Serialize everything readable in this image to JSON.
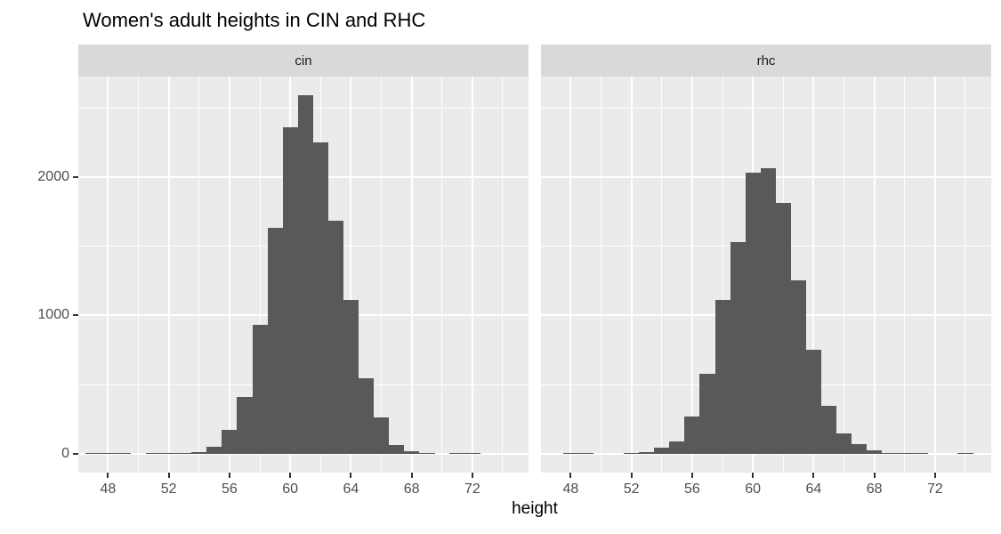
{
  "chart_data": {
    "type": "bar",
    "subtype": "faceted-histogram",
    "title": "Women's adult heights in CIN and RHC",
    "xlabel": "height",
    "ylabel": "",
    "binwidth": 1,
    "x_ticks": [
      48,
      52,
      56,
      60,
      64,
      68,
      72
    ],
    "x_minor_ticks": [
      50,
      54,
      58,
      62,
      66,
      70,
      74
    ],
    "y_ticks": [
      0,
      1000,
      2000
    ],
    "y_minor_ticks": [
      500,
      1500,
      2500
    ],
    "x_range": [
      46.04,
      75.7
    ],
    "y_range": [
      -135,
      2725
    ],
    "legend": "none",
    "grid": "on",
    "bin_centers": [
      47,
      48,
      49,
      50,
      51,
      52,
      53,
      54,
      55,
      56,
      57,
      58,
      59,
      60,
      61,
      62,
      63,
      64,
      65,
      66,
      67,
      68,
      69,
      70,
      71,
      72,
      73,
      74
    ],
    "facets": [
      {
        "label": "cin",
        "counts": [
          3,
          4,
          4,
          0,
          3,
          4,
          8,
          16,
          50,
          172,
          410,
          930,
          1630,
          2360,
          2590,
          2250,
          1685,
          1110,
          545,
          265,
          63,
          19,
          5,
          0,
          3,
          2,
          0,
          0
        ]
      },
      {
        "label": "rhc",
        "counts": [
          0,
          4,
          4,
          0,
          0,
          5,
          15,
          48,
          88,
          270,
          580,
          1110,
          1530,
          2030,
          2065,
          1810,
          1255,
          750,
          350,
          145,
          70,
          26,
          9,
          3,
          3,
          0,
          0,
          4
        ]
      }
    ],
    "colors": {
      "bar_fill": "#595959",
      "panel_background": "#EBEBEB",
      "strip_background": "#D9D9D9",
      "gridline": "#FFFFFF",
      "axis_text": "#4D4D4D",
      "tick_mark": "#333333",
      "title_text": "#000000"
    }
  }
}
